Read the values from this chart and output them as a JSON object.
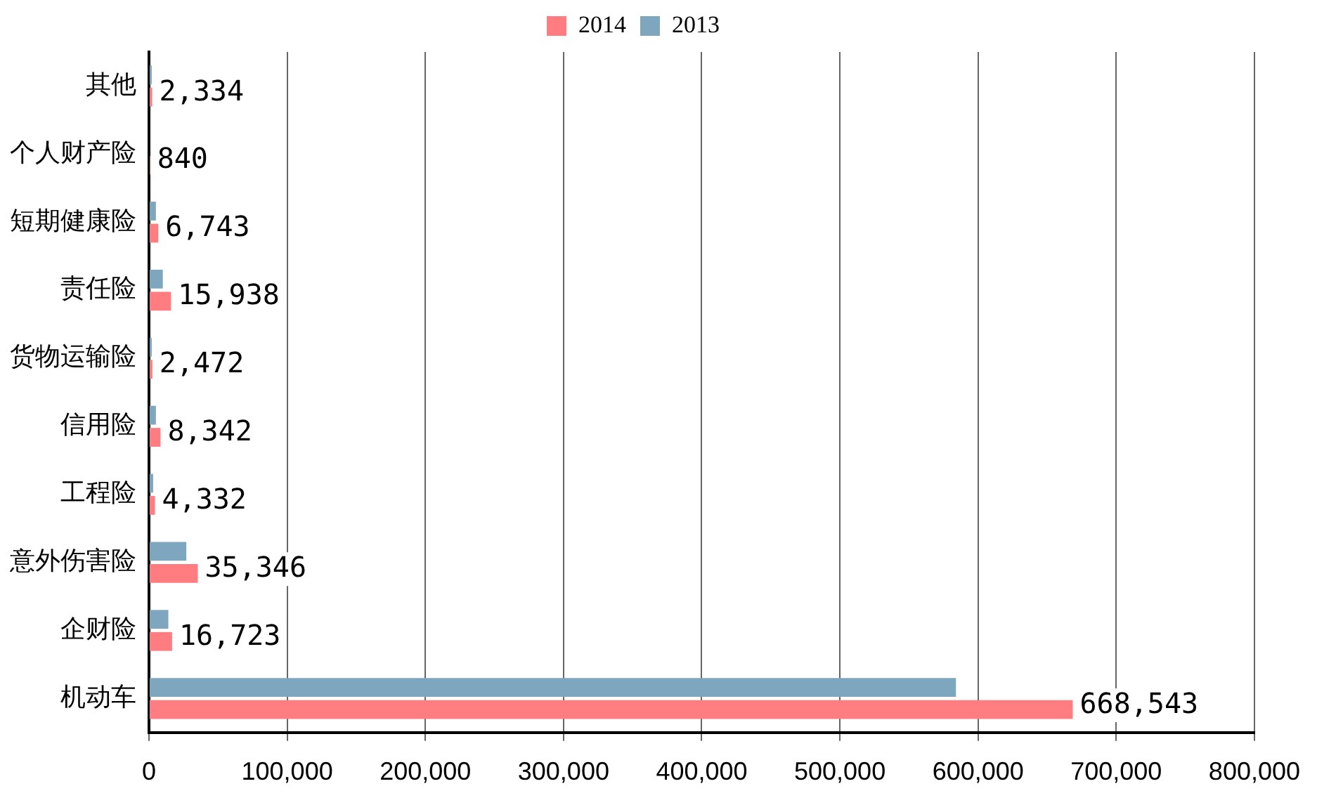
{
  "chart_data": {
    "type": "bar",
    "orientation": "horizontal",
    "categories": [
      "其他",
      "个人财产险",
      "短期健康险",
      "责任险",
      "货物运输险",
      "信用险",
      "工程险",
      "意外伤害险",
      "企财险",
      "机动车"
    ],
    "series": [
      {
        "name": "2014",
        "color": "#ff7c80",
        "values": [
          2334,
          840,
          6743,
          15938,
          2472,
          8342,
          4332,
          35346,
          16723,
          668543
        ],
        "value_labels": [
          "2,334",
          "840",
          "6,743",
          "15,938",
          "2,472",
          "8,342",
          "4,332",
          "35,346",
          "16,723",
          "668,543"
        ]
      },
      {
        "name": "2013",
        "color": "#7fa6bf",
        "values": [
          2000,
          null,
          5000,
          10000,
          2000,
          5000,
          3000,
          27000,
          14000,
          584000
        ]
      }
    ],
    "xlim": [
      0,
      800000
    ],
    "xticks": [
      {
        "value": 0,
        "label": "0"
      },
      {
        "value": 100000,
        "label": "100,000"
      },
      {
        "value": 200000,
        "label": "200,000"
      },
      {
        "value": 300000,
        "label": "300,000"
      },
      {
        "value": 400000,
        "label": "400,000"
      },
      {
        "value": 500000,
        "label": "500,000"
      },
      {
        "value": 600000,
        "label": "600,000"
      },
      {
        "value": 700000,
        "label": "700,000"
      },
      {
        "value": 800000,
        "label": "800,000"
      }
    ],
    "grid": "x",
    "legend": "top"
  }
}
